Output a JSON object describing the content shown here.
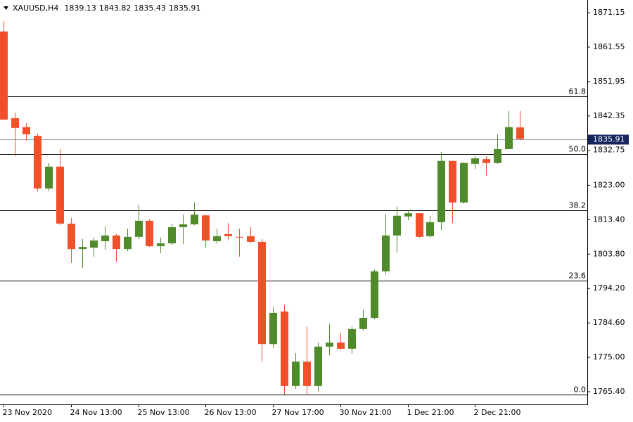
{
  "chart_data": {
    "type": "candlestick",
    "symbol": "XAUUSD,H4",
    "up_color": "#4f8a2b",
    "down_color": "#f2502a",
    "categories": [
      "23 Nov 2020",
      null,
      null,
      null,
      null,
      null,
      "24 Nov 13:00",
      null,
      null,
      null,
      null,
      null,
      "25 Nov 13:00",
      null,
      null,
      null,
      null,
      null,
      "26 Nov 13:00",
      null,
      null,
      null,
      null,
      null,
      "27 Nov 17:00",
      null,
      null,
      null,
      null,
      null,
      "30 Nov 21:00",
      null,
      null,
      null,
      null,
      null,
      "1 Dec 21:00",
      null,
      null,
      null,
      null,
      null,
      "2 Dec 21:00",
      null,
      null,
      null,
      null
    ],
    "open": [
      1865.9,
      1841.7,
      1839.2,
      1836.8,
      1822.1,
      1828.2,
      1812.3,
      1805.2,
      1805.6,
      1807.4,
      1809.0,
      1805.2,
      1808.6,
      1813.1,
      1806.0,
      1806.8,
      1811.3,
      1812.1,
      1814.6,
      1807.4,
      1809.4,
      1808.6,
      1808.8,
      1807.2,
      1778.7,
      1787.8,
      1767.0,
      1773.8,
      1767.0,
      1778.0,
      1779.1,
      1777.4,
      1782.9,
      1786.0,
      1799.0,
      1809.0,
      1814.3,
      1815.2,
      1808.8,
      1812.7,
      1829.8,
      1818.2,
      1829.0,
      1830.3,
      1829.2,
      1833.1,
      1839.13
    ],
    "high": [
      1868.8,
      1843.3,
      1840.3,
      1837.4,
      1829.2,
      1833.1,
      1813.9,
      1808.0,
      1808.4,
      1811.5,
      1809.4,
      1810.9,
      1817.6,
      1813.5,
      1808.4,
      1812.3,
      1814.8,
      1818.2,
      1814.8,
      1810.9,
      1812.5,
      1810.9,
      1811.3,
      1808.0,
      1789.1,
      1789.7,
      1776.2,
      1783.6,
      1779.1,
      1784.2,
      1781.7,
      1783.6,
      1788.2,
      1799.5,
      1815.0,
      1817.0,
      1816.2,
      1815.2,
      1814.5,
      1832.3,
      1829.8,
      1829.4,
      1831.1,
      1831.1,
      1837.2,
      1843.7,
      1843.82
    ],
    "low": [
      1841.3,
      1831.1,
      1835.4,
      1821.3,
      1821.3,
      1811.9,
      1801.3,
      1799.9,
      1803.1,
      1805.0,
      1801.7,
      1804.6,
      1808.0,
      1805.8,
      1804.1,
      1806.4,
      1806.6,
      1811.9,
      1805.6,
      1806.8,
      1807.6,
      1803.1,
      1807.0,
      1773.8,
      1777.6,
      1764.6,
      1766.2,
      1764.6,
      1765.4,
      1775.6,
      1777.0,
      1776.0,
      1782.5,
      1785.6,
      1798.2,
      1804.2,
      1813.3,
      1808.4,
      1808.4,
      1810.5,
      1812.5,
      1817.8,
      1827.6,
      1825.6,
      1829.0,
      1833.1,
      1835.43
    ],
    "close": [
      1841.3,
      1839.0,
      1837.2,
      1822.1,
      1828.2,
      1812.3,
      1805.2,
      1805.8,
      1807.6,
      1809.0,
      1805.2,
      1808.6,
      1813.1,
      1806.0,
      1806.8,
      1811.3,
      1812.1,
      1814.8,
      1807.6,
      1808.8,
      1808.8,
      1808.6,
      1807.2,
      1778.7,
      1787.4,
      1767.0,
      1773.8,
      1767.0,
      1778.0,
      1779.1,
      1777.4,
      1782.9,
      1786.0,
      1799.0,
      1809.0,
      1814.5,
      1815.2,
      1808.6,
      1812.7,
      1829.8,
      1818.2,
      1829.2,
      1830.5,
      1829.2,
      1833.1,
      1839.2,
      1835.91
    ],
    "ylim": [
      1761.87,
      1874.68
    ],
    "yticks": [
      1871.15,
      1861.55,
      1851.95,
      1842.35,
      1832.75,
      {
        "value": 1823.0,
        "label": "1823.00"
      },
      {
        "value": 1813.4,
        "label": "1813.40"
      },
      {
        "value": 1803.8,
        "label": "1803.80"
      },
      {
        "value": 1794.2,
        "label": "1794.20"
      },
      {
        "value": 1784.6,
        "label": "1784.60"
      },
      {
        "value": 1775.0,
        "label": "1775.00"
      },
      {
        "value": 1765.4,
        "label": "1765.40"
      }
    ],
    "fib_levels": [
      {
        "name": "61.8",
        "price": 1847.8
      },
      {
        "name": "50.0",
        "price": 1831.7
      },
      {
        "name": "38.2",
        "price": 1816.0
      },
      {
        "name": "23.6",
        "price": 1796.4
      },
      {
        "name": "0.0",
        "price": 1764.6
      }
    ],
    "current_price": 1835.91
  }
}
